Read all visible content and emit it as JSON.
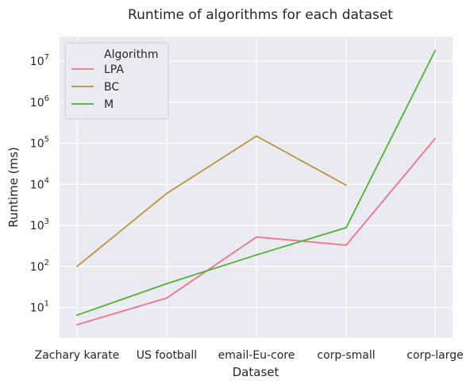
{
  "chart_data": {
    "type": "line",
    "title": "Runtime of algorithms for each dataset",
    "xlabel": "Dataset",
    "ylabel": "Runtime (ms)",
    "y_scale": "log",
    "ylim": [
      1.8,
      40000000
    ],
    "grid": true,
    "categories": [
      "Zachary karate",
      "US football",
      "email-Eu-core",
      "corp-small",
      "corp-large"
    ],
    "y_ticks": [
      {
        "value": 10,
        "base": "10",
        "exp": "1"
      },
      {
        "value": 100,
        "base": "10",
        "exp": "2"
      },
      {
        "value": 1000,
        "base": "10",
        "exp": "3"
      },
      {
        "value": 10000,
        "base": "10",
        "exp": "4"
      },
      {
        "value": 100000,
        "base": "10",
        "exp": "5"
      },
      {
        "value": 1000000,
        "base": "10",
        "exp": "6"
      },
      {
        "value": 10000000,
        "base": "10",
        "exp": "7"
      }
    ],
    "legend": {
      "title": "Algorithm",
      "placement": "top-left"
    },
    "series": [
      {
        "name": "LPA",
        "color": "#f07386",
        "values": [
          3.8,
          17,
          520,
          330,
          130000
        ]
      },
      {
        "name": "BC",
        "color": "#bd9337",
        "values": [
          100,
          6000,
          150000,
          9500,
          null
        ]
      },
      {
        "name": "M",
        "color": "#50b131",
        "values": [
          6.5,
          38,
          190,
          880,
          18000000
        ]
      }
    ],
    "colors": {
      "plot_background": "#eaeaf2",
      "grid": "#ffffff",
      "text": "#262626"
    }
  }
}
